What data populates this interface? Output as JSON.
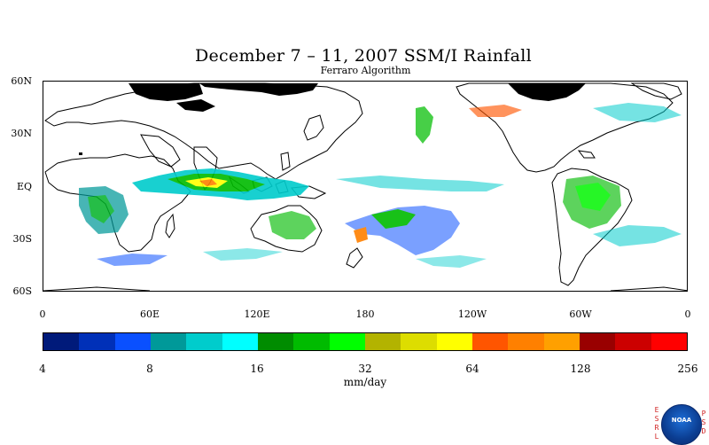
{
  "map": {
    "title": "December 7 – 11, 2007 SSM/I Rainfall",
    "subtitle": "Ferraro Algorithm",
    "lat_labels": [
      "60N",
      "30N",
      "EQ",
      "30S",
      "60S"
    ],
    "lon_labels": [
      "0",
      "60E",
      "120E",
      "180",
      "120W",
      "60W",
      "0"
    ]
  },
  "colorbar": {
    "colors": [
      "#001a7a",
      "#0030b8",
      "#0a50ff",
      "#009999",
      "#00cccc",
      "#00ffff",
      "#008c00",
      "#00bb00",
      "#00ff00",
      "#b3b300",
      "#dddd00",
      "#ffff00",
      "#ff5500",
      "#ff8000",
      "#ffa000",
      "#990000",
      "#cc0000",
      "#ff0000"
    ],
    "tick_labels": [
      "4",
      "8",
      "16",
      "32",
      "64",
      "128",
      "256"
    ],
    "units": "mm/day"
  },
  "logo": {
    "name": "noaa-icon",
    "text": "NOAA",
    "left_letters": [
      "E",
      "S",
      "R",
      "L"
    ],
    "right_letters": [
      "P",
      "S",
      "D"
    ]
  }
}
